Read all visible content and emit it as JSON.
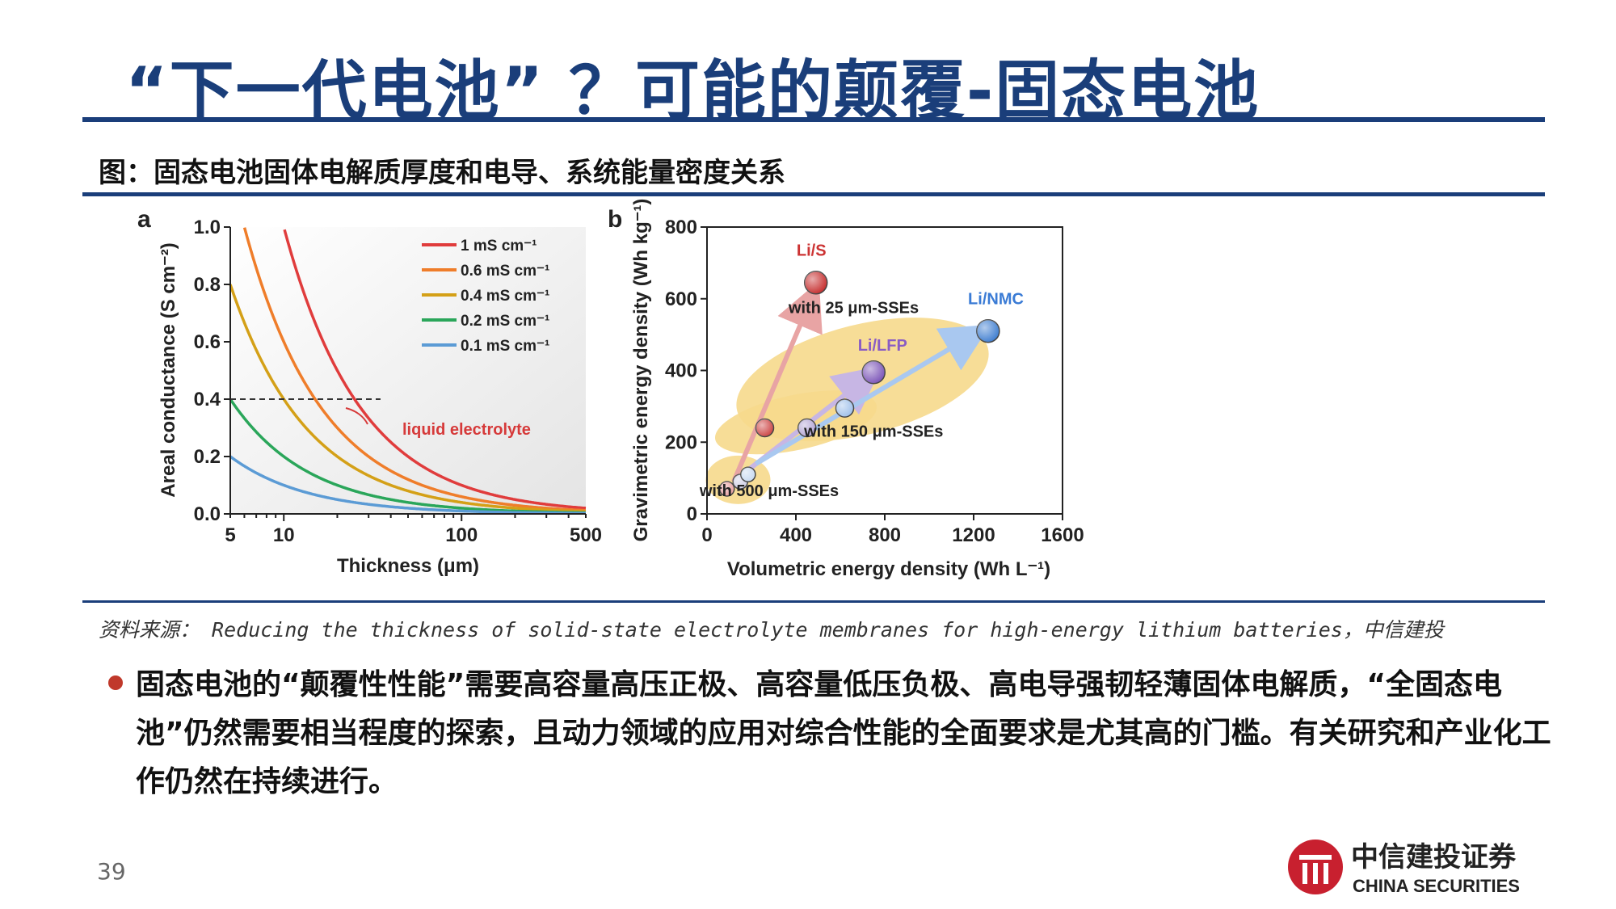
{
  "slide": {
    "title": "“下一代电池” ？可能的颠覆-固态电池",
    "figure_caption": "图：固态电池固体电解质厚度和电导、系统能量密度关系",
    "source": "资料来源： Reducing the thickness of solid-state electrolyte membranes for high-energy lithium batteries，中信建投",
    "bullet": "固态电池的“颠覆性性能”需要高容量高压正极、高容量低压负极、高电导强韧轻薄固体电解质，“全固态电池”仍然需要相当程度的探索，且动力领域的应用对综合性能的全面要求是尤其高的门槛。有关研究和产业化工作仍然在持续进行。",
    "page_number": "39",
    "logo": {
      "cn": "中信建投证券",
      "en": "CHINA SECURITIES"
    },
    "colors": {
      "title": "#1a3e7a",
      "rule": "#1a3e7a",
      "bullet": "#c0392b"
    }
  },
  "chart_data": [
    {
      "panel": "a",
      "type": "line",
      "xlabel": "Thickness (μm)",
      "ylabel": "Areal conductance (S cm⁻²)",
      "x_scale": "log",
      "xlim": [
        5,
        500
      ],
      "ylim": [
        0,
        1.0
      ],
      "xticks": [
        5,
        10,
        100,
        500
      ],
      "yticks": [
        0.0,
        0.2,
        0.4,
        0.6,
        0.8,
        1.0
      ],
      "xtick_labels": [
        "5",
        "10",
        "100",
        "500"
      ],
      "ytick_labels": [
        "0.0",
        "0.2",
        "0.4",
        "0.6",
        "0.8",
        "1.0"
      ],
      "series": [
        {
          "name": "1 mS cm⁻¹",
          "conductivity_mS_cm": 1.0,
          "color": "#e03c3c"
        },
        {
          "name": "0.6 mS cm⁻¹",
          "conductivity_mS_cm": 0.6,
          "color": "#ef7d2a"
        },
        {
          "name": "0.4 mS cm⁻¹",
          "conductivity_mS_cm": 0.4,
          "color": "#d4a017"
        },
        {
          "name": "0.2 mS cm⁻¹",
          "conductivity_mS_cm": 0.2,
          "color": "#2aa65a"
        },
        {
          "name": "0.1 mS cm⁻¹",
          "conductivity_mS_cm": 0.1,
          "color": "#5b9bd5"
        }
      ],
      "reference_line": {
        "y": 0.4,
        "x_range": [
          5,
          35
        ]
      },
      "annotation": {
        "text": "liquid electrolyte",
        "color": "#d63a3a"
      },
      "legend_position": "top-right"
    },
    {
      "panel": "b",
      "type": "scatter",
      "xlabel": "Volumetric energy density (Wh L⁻¹)",
      "ylabel": "Gravimetric energy density (Wh kg⁻¹)",
      "xlim": [
        0,
        1600
      ],
      "ylim": [
        0,
        800
      ],
      "xticks": [
        0,
        400,
        800,
        1200,
        1600
      ],
      "yticks": [
        0,
        200,
        400,
        600,
        800
      ],
      "xtick_labels": [
        "0",
        "400",
        "800",
        "1200",
        "1600"
      ],
      "ytick_labels": [
        "0",
        "200",
        "400",
        "600",
        "800"
      ],
      "groups": [
        {
          "name": "with 500 μm-SSEs",
          "points": [
            {
              "x": 90,
              "y": 70,
              "color": "#e8a0a0"
            },
            {
              "x": 150,
              "y": 90,
              "color": "#cfcfe6"
            },
            {
              "x": 185,
              "y": 110,
              "color": "#c8daf2"
            }
          ]
        },
        {
          "name": "with 150 μm-SSEs",
          "points": [
            {
              "x": 260,
              "y": 240,
              "color": "#cc4444"
            },
            {
              "x": 450,
              "y": 240,
              "color": "#b4a6d6"
            },
            {
              "x": 620,
              "y": 295,
              "color": "#9fc0ea"
            }
          ]
        },
        {
          "name": "with 25 μm-SSEs",
          "points": [
            {
              "x": 490,
              "y": 645,
              "color": "#c62e2e"
            },
            {
              "x": 750,
              "y": 395,
              "color": "#7c55b8"
            },
            {
              "x": 1265,
              "y": 510,
              "color": "#3f7ed0"
            }
          ]
        }
      ],
      "labels": [
        {
          "text": "Li/S",
          "color": "#cc3333"
        },
        {
          "text": "Li/LFP",
          "color": "#8a5cc4"
        },
        {
          "text": "Li/NMC",
          "color": "#3a7bd5"
        }
      ],
      "arrows": [
        {
          "from": [
            120,
            90
          ],
          "to": [
            470,
            600
          ],
          "color": "#e8a4a4"
        },
        {
          "from": [
            180,
            120
          ],
          "to": [
            720,
            380
          ],
          "color": "#c7b6e4"
        },
        {
          "from": [
            220,
            140
          ],
          "to": [
            1200,
            500
          ],
          "color": "#a9c8f0"
        }
      ]
    }
  ]
}
